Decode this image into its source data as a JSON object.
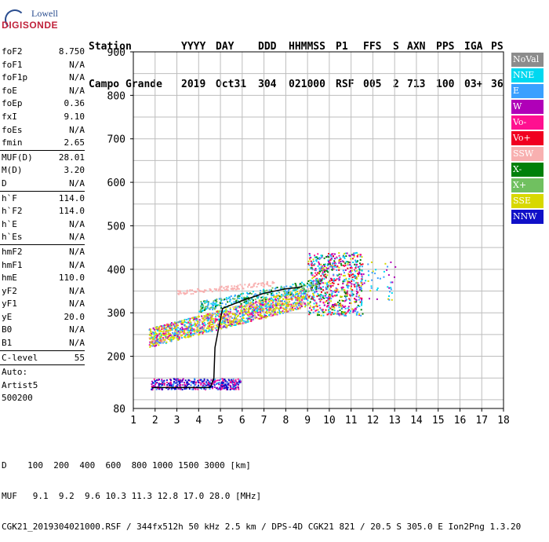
{
  "logo": {
    "line1": "Lowell",
    "line2": "DIGISONDE"
  },
  "header": {
    "labels": [
      {
        "text": "Station"
      },
      {
        "text": "YYYY"
      },
      {
        "text": "DAY"
      },
      {
        "text": "DDD"
      },
      {
        "text": "HHMMSS"
      },
      {
        "text": "P1"
      },
      {
        "text": "FFS"
      },
      {
        "text": "S"
      },
      {
        "text": "AXN"
      },
      {
        "text": "PPS"
      },
      {
        "text": "IGA"
      },
      {
        "text": "PS"
      }
    ],
    "values": [
      {
        "text": "Campo Grande"
      },
      {
        "text": "2019"
      },
      {
        "text": "Oct31"
      },
      {
        "text": "304"
      },
      {
        "text": "021000"
      },
      {
        "text": "RSF"
      },
      {
        "text": "005"
      },
      {
        "text": "2"
      },
      {
        "text": "713"
      },
      {
        "text": "100"
      },
      {
        "text": "03+"
      },
      {
        "text": "36"
      }
    ]
  },
  "params": [
    {
      "group": [
        {
          "k": "foF2",
          "v": "8.750"
        },
        {
          "k": "foF1",
          "v": "N/A"
        },
        {
          "k": "foF1p",
          "v": "N/A"
        },
        {
          "k": "foE",
          "v": "N/A"
        },
        {
          "k": "foEp",
          "v": "0.36"
        },
        {
          "k": "fxI",
          "v": "9.10"
        },
        {
          "k": "foEs",
          "v": "N/A"
        },
        {
          "k": "fmin",
          "v": "2.65"
        }
      ]
    },
    {
      "group": [
        {
          "k": "MUF(D)",
          "v": "28.01"
        },
        {
          "k": "M(D)",
          "v": "3.20"
        },
        {
          "k": "D",
          "v": "N/A"
        }
      ]
    },
    {
      "group": [
        {
          "k": "h`F",
          "v": "114.0"
        },
        {
          "k": "h`F2",
          "v": "114.0"
        },
        {
          "k": "h`E",
          "v": "N/A"
        },
        {
          "k": "h`Es",
          "v": "N/A"
        }
      ]
    },
    {
      "group": [
        {
          "k": "hmF2",
          "v": "N/A"
        },
        {
          "k": "hmF1",
          "v": "N/A"
        },
        {
          "k": "hmE",
          "v": "110.0"
        },
        {
          "k": "yF2",
          "v": "N/A"
        },
        {
          "k": "yF1",
          "v": "N/A"
        },
        {
          "k": "yE",
          "v": "20.0"
        },
        {
          "k": "B0",
          "v": "N/A"
        },
        {
          "k": "B1",
          "v": "N/A"
        }
      ]
    },
    {
      "group": [
        {
          "k": "C-level",
          "v": "55"
        }
      ]
    },
    {
      "group": [
        {
          "k": "Auto:",
          "v": ""
        },
        {
          "k": "Artist5",
          "v": ""
        },
        {
          "k": "500200",
          "v": ""
        }
      ]
    }
  ],
  "legend": [
    {
      "label": "NoVal",
      "color": "#8c8c8c"
    },
    {
      "label": "NNE",
      "color": "#00d8f0"
    },
    {
      "label": "E",
      "color": "#3aa0ff"
    },
    {
      "label": "W",
      "color": "#b000b8"
    },
    {
      "label": "Vo-",
      "color": "#ff1090"
    },
    {
      "label": "Vo+",
      "color": "#f00020"
    },
    {
      "label": "SSW",
      "color": "#f8b0b0"
    },
    {
      "label": "X-",
      "color": "#00800a"
    },
    {
      "label": "X+",
      "color": "#70c060"
    },
    {
      "label": "SSE",
      "color": "#d8d800"
    },
    {
      "label": "NNW",
      "color": "#1010c8"
    }
  ],
  "footer": {
    "line1": "D    100  200  400  600  800 1000 1500 3000 [km]",
    "line2": "MUF   9.1  9.2  9.6 10.3 11.3 12.8 17.0 28.0 [MHz]",
    "line3": "CGK21_2019304021000.RSF / 344fx512h 50 kHz 2.5 km / DPS-4D CGK21 821 / 20.5 S 305.0 E Ion2Png 1.3.20"
  },
  "chart_data": {
    "type": "scatter",
    "title": "",
    "xlabel": "",
    "ylabel": "",
    "xlim": [
      1,
      18
    ],
    "ylim": [
      80,
      900
    ],
    "xticks": [
      1,
      2,
      3,
      4,
      5,
      6,
      7,
      8,
      9,
      10,
      11,
      12,
      13,
      14,
      15,
      16,
      17,
      18
    ],
    "yticks": [
      200,
      300,
      400,
      500,
      600,
      700,
      800,
      900
    ],
    "yticklabels": [
      "200",
      "300",
      "400",
      "500",
      "600",
      "700",
      "800",
      "900"
    ],
    "yextra_label": "80",
    "grid": true,
    "trace_line": {
      "x": [
        1.85,
        2.0,
        4.5,
        4.55,
        4.7,
        4.75,
        4.9,
        5.1,
        5.5,
        6.0,
        7.0,
        8.0,
        8.5,
        8.75
      ],
      "y": [
        128,
        128,
        128,
        130,
        150,
        220,
        260,
        310,
        318,
        328,
        345,
        355,
        358,
        360
      ]
    },
    "clusters": [
      {
        "name": "E-trace",
        "x": [
          1.8,
          5.9
        ],
        "y": [
          125,
          150
        ],
        "n": 420,
        "colors": [
          "#1010c8",
          "#b000b8",
          "#ff1090",
          "#1010c8",
          "#3aa0ff"
        ]
      },
      {
        "name": "F-main",
        "x": [
          1.7,
          9.0
        ],
        "y": [
          235,
          360
        ],
        "n": 1600,
        "slope": true,
        "colors": [
          "#d8d800",
          "#d8d800",
          "#d8d800",
          "#ff1090",
          "#b000b8",
          "#3aa0ff",
          "#f8b0b0",
          "#00d8f0"
        ]
      },
      {
        "name": "F-high",
        "x": [
          9.0,
          11.5
        ],
        "y": [
          295,
          440
        ],
        "n": 700,
        "colors": [
          "#ff1090",
          "#b000b8",
          "#3aa0ff",
          "#d8d800",
          "#00d8f0",
          "#f00020",
          "#00800a"
        ]
      },
      {
        "name": "X-trace",
        "x": [
          4.0,
          9.5
        ],
        "y": [
          310,
          380
        ],
        "n": 320,
        "slope": true,
        "colors": [
          "#70c060",
          "#00800a",
          "#00d8f0",
          "#3aa0ff"
        ]
      },
      {
        "name": "SSW-streak",
        "x": [
          3.0,
          7.5
        ],
        "y": [
          345,
          375
        ],
        "n": 120,
        "slope": true,
        "colors": [
          "#f8b0b0"
        ]
      },
      {
        "name": "scatter-outer",
        "x": [
          11.0,
          13.0
        ],
        "y": [
          330,
          420
        ],
        "n": 60,
        "colors": [
          "#00d8f0",
          "#3aa0ff",
          "#d8d800",
          "#b000b8"
        ]
      }
    ]
  }
}
